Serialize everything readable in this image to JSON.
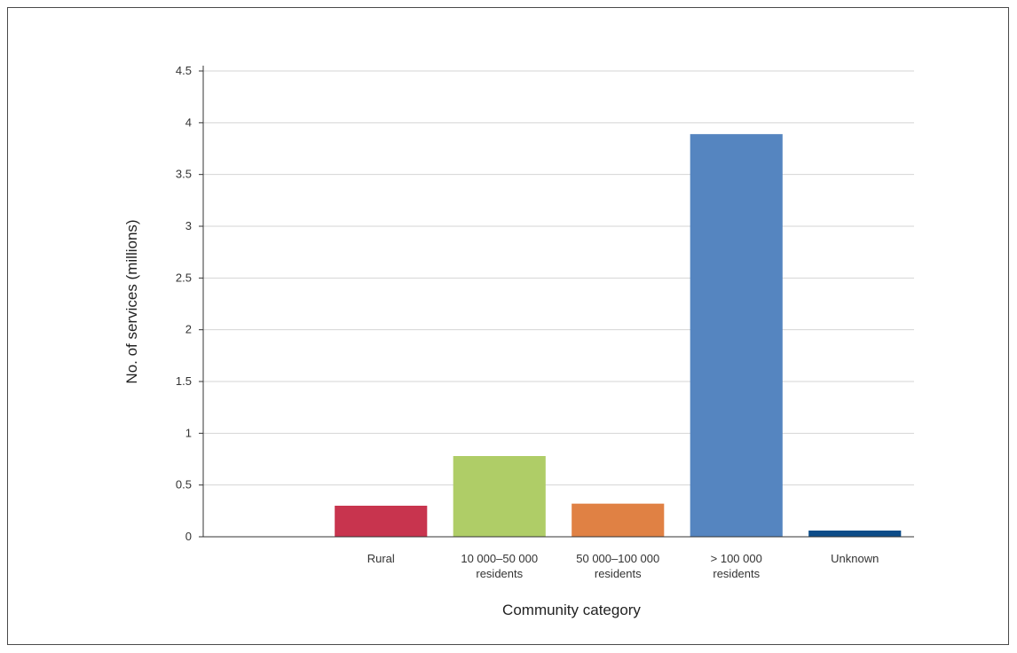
{
  "chart_data": {
    "type": "bar",
    "title": "",
    "xlabel": "Community category",
    "ylabel": "No. of services (millions)",
    "ylim": [
      0,
      4.5
    ],
    "yticks": [
      "0",
      "0.5",
      "1",
      "1.5",
      "2",
      "2.5",
      "3",
      "3.5",
      "4",
      "4.5"
    ],
    "categories": [
      [
        "Rural"
      ],
      [
        "10 000–50 000",
        "residents"
      ],
      [
        "50 000–100 000",
        "residents"
      ],
      [
        "> 100 000",
        "residents"
      ],
      [
        "Unknown"
      ]
    ],
    "values": [
      0.3,
      0.78,
      0.32,
      3.89,
      0.06
    ],
    "colors": [
      "#c8344e",
      "#afcd67",
      "#e08144",
      "#5585c0",
      "#0c4c88"
    ],
    "grid": true,
    "legend": "none"
  }
}
